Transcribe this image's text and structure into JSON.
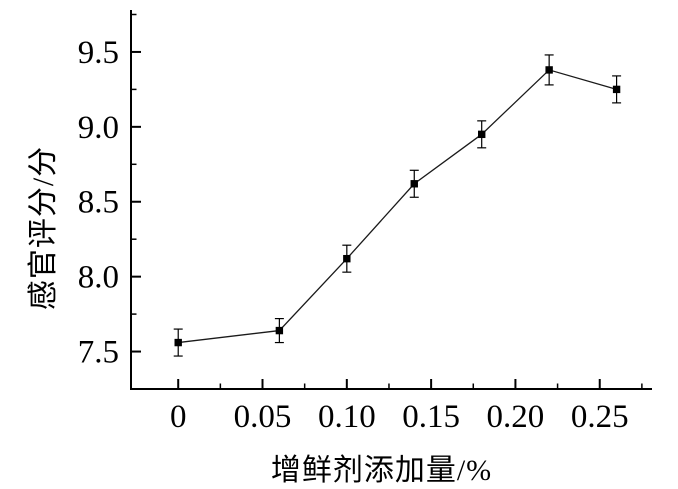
{
  "figure": {
    "background": "#ffffff",
    "axis_color": "#000000",
    "series_color": "#1a1a1a",
    "marker_color": "#000000"
  },
  "chart_data": {
    "type": "line",
    "title": "",
    "xlabel": "增鲜剂添加量/%",
    "ylabel": "感官评分/分",
    "series": [
      {
        "name": "感官评分",
        "x": [
          0,
          0.06,
          0.1,
          0.14,
          0.18,
          0.22,
          0.26
        ],
        "y": [
          7.56,
          7.64,
          8.12,
          8.62,
          8.95,
          9.38,
          9.25
        ],
        "yerr": [
          0.09,
          0.08,
          0.09,
          0.09,
          0.09,
          0.1,
          0.09
        ],
        "marker": "filled-square"
      }
    ],
    "xlim": [
      -0.028,
      0.281
    ],
    "ylim": [
      7.25,
      9.78
    ],
    "x_major_ticks": [
      0,
      0.05,
      0.1,
      0.15,
      0.2,
      0.25
    ],
    "x_major_tick_labels": [
      "0",
      "0.05",
      "0.10",
      "0.15",
      "0.20",
      "0.25"
    ],
    "x_minor_ticks": [
      0.025,
      0.075,
      0.125,
      0.175,
      0.225,
      0.275
    ],
    "y_major_ticks": [
      7.5,
      8.0,
      8.5,
      9.0,
      9.5
    ],
    "y_major_tick_labels": [
      "7.5",
      "8.0",
      "8.5",
      "9.0",
      "9.5"
    ],
    "y_minor_ticks": [
      7.75,
      8.25,
      8.75,
      9.25,
      9.75
    ],
    "grid": false,
    "legend": null,
    "spines": [
      "left",
      "bottom"
    ]
  }
}
